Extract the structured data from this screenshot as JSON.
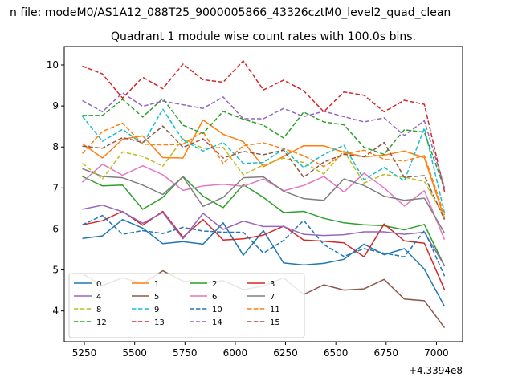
{
  "chart_data": {
    "type": "line",
    "suptitle": "n file: modeM0/AS1A12_088T25_9000005866_43326cztM0_level2_quad_clean",
    "title": "Quadrant 1 module wise count rates with 100.0s bins.",
    "xlabel": "",
    "ylabel": "",
    "x_offset_label": "+4.3394e8",
    "xlim": [
      5150,
      7130
    ],
    "ylim": [
      3.25,
      10.45
    ],
    "xticks": [
      5250,
      5500,
      5750,
      6000,
      6250,
      6500,
      6750,
      7000
    ],
    "yticks": [
      4,
      5,
      6,
      7,
      8,
      9,
      10
    ],
    "grid": false,
    "legend": {
      "placement": "lower-left",
      "columns": 4
    },
    "x": [
      5240,
      5340,
      5440,
      5540,
      5640,
      5740,
      5840,
      5940,
      6040,
      6140,
      6240,
      6340,
      6440,
      6540,
      6640,
      6740,
      6840,
      6940,
      7040
    ],
    "series": [
      {
        "name": "0",
        "color": "#1f77b4",
        "dash": "solid",
        "values": [
          5.77,
          5.83,
          6.23,
          6.02,
          5.64,
          5.69,
          5.63,
          6.15,
          5.36,
          5.96,
          5.17,
          5.12,
          5.16,
          5.26,
          5.63,
          5.37,
          5.52,
          5.02,
          4.11
        ]
      },
      {
        "name": "1",
        "color": "#ff7f0e",
        "dash": "solid",
        "values": [
          8.08,
          7.73,
          8.19,
          8.27,
          7.74,
          7.73,
          8.66,
          8.31,
          8.13,
          7.52,
          7.77,
          8.03,
          8.03,
          7.87,
          7.76,
          7.8,
          7.9,
          7.74,
          6.25
        ]
      },
      {
        "name": "2",
        "color": "#2ca02c",
        "dash": "solid",
        "values": [
          7.28,
          7.05,
          7.07,
          6.48,
          6.77,
          7.28,
          6.8,
          6.52,
          7.08,
          6.77,
          6.4,
          6.43,
          6.26,
          6.15,
          6.1,
          6.08,
          5.98,
          6.11,
          5.09
        ]
      },
      {
        "name": "3",
        "color": "#d62728",
        "dash": "solid",
        "values": [
          6.1,
          6.2,
          6.43,
          6.09,
          6.43,
          5.8,
          6.23,
          5.73,
          5.76,
          5.85,
          6.07,
          5.73,
          5.7,
          5.66,
          5.32,
          6.12,
          5.71,
          5.65,
          4.52
        ]
      },
      {
        "name": "4",
        "color": "#9467bd",
        "dash": "solid",
        "values": [
          6.48,
          6.58,
          6.42,
          6.14,
          6.4,
          5.76,
          6.38,
          5.99,
          6.19,
          6.06,
          6.06,
          5.87,
          5.84,
          5.86,
          5.93,
          5.93,
          5.87,
          5.92,
          5.1
        ]
      },
      {
        "name": "5",
        "color": "#8c564b",
        "dash": "solid",
        "values": [
          4.91,
          4.62,
          4.81,
          4.67,
          4.98,
          4.73,
          4.67,
          4.74,
          4.52,
          4.61,
          4.81,
          4.4,
          4.64,
          4.51,
          4.54,
          4.77,
          4.29,
          4.25,
          3.59
        ]
      },
      {
        "name": "6",
        "color": "#e377c2",
        "dash": "solid",
        "values": [
          7.14,
          7.58,
          7.31,
          7.54,
          7.32,
          6.94,
          7.05,
          7.09,
          7.04,
          7.22,
          6.93,
          7.06,
          7.28,
          6.9,
          7.36,
          7.0,
          6.56,
          6.93,
          5.74
        ]
      },
      {
        "name": "7",
        "color": "#7f7f7f",
        "dash": "solid",
        "values": [
          7.47,
          7.28,
          7.25,
          7.07,
          6.84,
          7.27,
          6.55,
          6.77,
          7.25,
          7.27,
          6.92,
          6.74,
          6.7,
          7.22,
          7.06,
          6.8,
          6.7,
          6.75,
          5.9
        ]
      },
      {
        "name": "8",
        "color": "#bcbd22",
        "dash": "dashed",
        "values": [
          7.6,
          7.22,
          7.88,
          7.77,
          7.53,
          8.2,
          7.97,
          7.99,
          7.32,
          7.56,
          7.73,
          7.62,
          7.34,
          7.9,
          7.12,
          7.33,
          7.26,
          7.16,
          6.29
        ]
      },
      {
        "name": "9",
        "color": "#17becf",
        "dash": "dashed",
        "values": [
          8.75,
          8.14,
          8.43,
          8.07,
          8.92,
          8.17,
          7.9,
          8.11,
          7.6,
          7.62,
          7.95,
          7.5,
          7.82,
          8.04,
          7.2,
          7.5,
          7.17,
          8.46,
          6.39
        ]
      },
      {
        "name": "10",
        "color": "#1f77b4",
        "dash": "dashed",
        "values": [
          6.1,
          6.33,
          5.87,
          5.96,
          5.89,
          6.04,
          5.95,
          5.92,
          5.92,
          5.41,
          5.72,
          6.21,
          5.62,
          5.33,
          5.52,
          5.41,
          5.32,
          5.96,
          4.85
        ]
      },
      {
        "name": "11",
        "color": "#ff7f0e",
        "dash": "dashed",
        "values": [
          7.84,
          8.38,
          8.58,
          8.07,
          8.05,
          8.07,
          8.37,
          7.6,
          8.03,
          8.1,
          7.96,
          7.79,
          7.52,
          7.83,
          7.92,
          7.7,
          7.66,
          7.79,
          6.34
        ]
      },
      {
        "name": "12",
        "color": "#2ca02c",
        "dash": "dashed",
        "values": [
          8.77,
          8.77,
          9.16,
          8.73,
          9.18,
          8.53,
          8.33,
          8.87,
          8.68,
          8.53,
          8.22,
          8.85,
          8.61,
          8.54,
          7.99,
          7.82,
          8.42,
          8.36,
          6.98
        ]
      },
      {
        "name": "13",
        "color": "#d62728",
        "dash": "dashed",
        "values": [
          9.97,
          9.78,
          9.19,
          9.7,
          9.42,
          10.02,
          9.64,
          9.58,
          10.1,
          9.39,
          9.63,
          9.37,
          8.86,
          9.34,
          9.26,
          8.86,
          9.14,
          9.04,
          6.91
        ]
      },
      {
        "name": "14",
        "color": "#9467bd",
        "dash": "dashed",
        "values": [
          9.13,
          8.86,
          9.32,
          8.99,
          9.12,
          9.03,
          8.94,
          9.22,
          8.69,
          8.69,
          8.94,
          8.74,
          8.87,
          8.74,
          8.61,
          8.71,
          8.28,
          8.64,
          7.01
        ]
      },
      {
        "name": "15",
        "color": "#8c564b",
        "dash": "dashed",
        "values": [
          8.02,
          7.97,
          8.23,
          8.11,
          8.51,
          7.99,
          8.2,
          7.73,
          7.89,
          7.81,
          7.92,
          7.26,
          7.63,
          7.82,
          7.76,
          8.11,
          7.26,
          7.3,
          6.23
        ]
      }
    ]
  }
}
